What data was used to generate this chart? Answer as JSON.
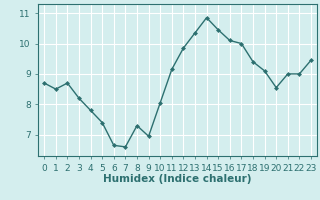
{
  "xlabel": "Humidex (Indice chaleur)",
  "ylabel": "",
  "x_values": [
    0,
    1,
    2,
    3,
    4,
    5,
    6,
    7,
    8,
    9,
    10,
    11,
    12,
    13,
    14,
    15,
    16,
    17,
    18,
    19,
    20,
    21,
    22,
    23
  ],
  "y_values": [
    8.7,
    8.5,
    8.7,
    8.2,
    7.8,
    7.4,
    6.65,
    6.6,
    7.3,
    6.95,
    8.05,
    9.15,
    9.85,
    10.35,
    10.85,
    10.45,
    10.1,
    10.0,
    9.4,
    9.1,
    8.55,
    9.0,
    9.0,
    9.45
  ],
  "line_color": "#2d7070",
  "marker": "D",
  "marker_size": 2.0,
  "bg_color": "#d4eeee",
  "grid_color": "#ffffff",
  "axes_color": "#2d7070",
  "tick_label_color": "#2d7070",
  "ylim": [
    6.3,
    11.3
  ],
  "xlim": [
    -0.5,
    23.5
  ],
  "yticks": [
    7,
    8,
    9,
    10,
    11
  ],
  "xticks": [
    0,
    1,
    2,
    3,
    4,
    5,
    6,
    7,
    8,
    9,
    10,
    11,
    12,
    13,
    14,
    15,
    16,
    17,
    18,
    19,
    20,
    21,
    22,
    23
  ],
  "xlabel_fontsize": 7.5,
  "tick_fontsize": 6.5,
  "line_width": 1.0
}
